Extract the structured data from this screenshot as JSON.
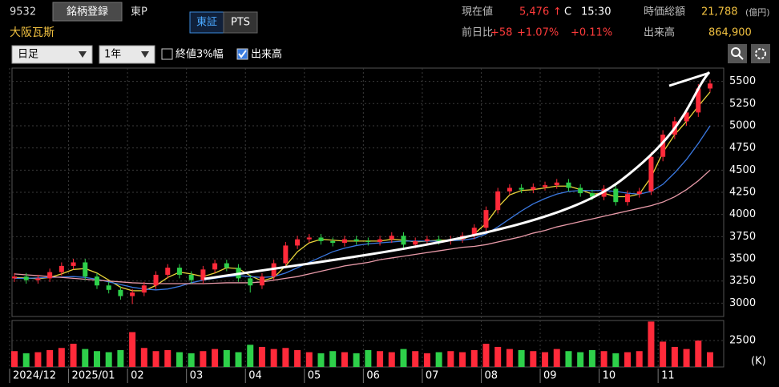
{
  "header": {
    "code": "9532",
    "register": "銘柄登録",
    "market": "東P",
    "tabs": [
      "東証",
      "PTS"
    ],
    "name": "大阪瓦斯",
    "price_label": "現在値",
    "price": "5,476",
    "arrow": "↑",
    "price_flag": "C",
    "time": "15:30",
    "cap_label": "時価総額",
    "cap": "21,788",
    "cap_unit": "(億円)",
    "change_label": "前日比",
    "change": "+58",
    "change_pct": "+1.07%",
    "change_pct2": "+0.11%",
    "volume_label": "出来高",
    "volume": "864,900"
  },
  "controls": {
    "period": "日足",
    "range": "1年",
    "checks": [
      {
        "label": "終値3%幅",
        "checked": false
      },
      {
        "label": "出来高",
        "checked": true
      }
    ]
  },
  "chart_data": {
    "type": "candlestick",
    "up_color": "#ff2a3a",
    "down_color": "#2ed04a",
    "categories": [
      "2024/12",
      null,
      null,
      null,
      null,
      "2025/01",
      null,
      null,
      null,
      null,
      "02",
      null,
      null,
      null,
      null,
      "03",
      null,
      null,
      null,
      null,
      "04",
      null,
      null,
      null,
      null,
      "05",
      null,
      null,
      null,
      null,
      "06",
      null,
      null,
      null,
      null,
      "07",
      null,
      null,
      null,
      null,
      "08",
      null,
      null,
      null,
      null,
      "09",
      null,
      null,
      null,
      null,
      "10",
      null,
      null,
      null,
      null,
      "11",
      null,
      null,
      null,
      null
    ],
    "open": [
      3280,
      3300,
      3260,
      3280,
      3350,
      3420,
      3460,
      3300,
      3200,
      3150,
      3080,
      3120,
      3200,
      3320,
      3400,
      3320,
      3260,
      3380,
      3450,
      3400,
      3280,
      3200,
      3300,
      3450,
      3650,
      3720,
      3740,
      3700,
      3680,
      3720,
      3700,
      3690,
      3720,
      3760,
      3660,
      3700,
      3720,
      3700,
      3720,
      3760,
      3850,
      4050,
      4260,
      4300,
      4280,
      4310,
      4330,
      4360,
      4300,
      4240,
      4200,
      4290,
      4140,
      4230,
      4260,
      4650,
      4900,
      5050,
      5150,
      5420
    ],
    "high": [
      3340,
      3340,
      3320,
      3390,
      3460,
      3500,
      3500,
      3340,
      3240,
      3190,
      3160,
      3240,
      3360,
      3440,
      3440,
      3360,
      3420,
      3490,
      3490,
      3440,
      3320,
      3340,
      3490,
      3690,
      3760,
      3780,
      3780,
      3740,
      3760,
      3760,
      3740,
      3760,
      3800,
      3800,
      3740,
      3760,
      3760,
      3760,
      3800,
      3890,
      4090,
      4300,
      4340,
      4340,
      4350,
      4370,
      4400,
      4400,
      4340,
      4280,
      4330,
      4330,
      4270,
      4300,
      4700,
      4950,
      5100,
      5200,
      5470,
      5520
    ],
    "low": [
      3240,
      3220,
      3220,
      3240,
      3310,
      3380,
      3260,
      3160,
      3110,
      3040,
      2990,
      3080,
      3160,
      3280,
      3280,
      3220,
      3220,
      3340,
      3360,
      3240,
      3120,
      3160,
      3260,
      3410,
      3610,
      3680,
      3660,
      3640,
      3640,
      3660,
      3650,
      3650,
      3680,
      3620,
      3620,
      3660,
      3660,
      3660,
      3680,
      3720,
      3810,
      4010,
      4220,
      4240,
      4240,
      4270,
      4290,
      4260,
      4200,
      4160,
      4160,
      4100,
      4100,
      4190,
      4220,
      4600,
      4850,
      5000,
      5100,
      5380
    ],
    "close": [
      3300,
      3260,
      3280,
      3350,
      3420,
      3460,
      3300,
      3200,
      3150,
      3080,
      3120,
      3200,
      3320,
      3400,
      3320,
      3260,
      3380,
      3450,
      3400,
      3280,
      3200,
      3300,
      3450,
      3650,
      3720,
      3740,
      3700,
      3680,
      3720,
      3700,
      3690,
      3720,
      3760,
      3660,
      3700,
      3720,
      3700,
      3720,
      3760,
      3850,
      4050,
      4260,
      4300,
      4280,
      4310,
      4330,
      4360,
      4300,
      4240,
      4200,
      4290,
      4140,
      4230,
      4260,
      4650,
      4900,
      5050,
      5150,
      5420,
      5476
    ],
    "series": [
      {
        "color": "#e8d43a",
        "values": [
          3290,
          3285,
          3275,
          3290,
          3330,
          3380,
          3390,
          3340,
          3260,
          3180,
          3140,
          3140,
          3200,
          3290,
          3350,
          3330,
          3300,
          3340,
          3400,
          3390,
          3310,
          3250,
          3290,
          3420,
          3580,
          3680,
          3720,
          3710,
          3700,
          3700,
          3700,
          3700,
          3720,
          3710,
          3690,
          3700,
          3710,
          3710,
          3720,
          3780,
          3900,
          4080,
          4220,
          4270,
          4280,
          4300,
          4320,
          4320,
          4280,
          4230,
          4240,
          4200,
          4200,
          4230,
          4420,
          4700,
          4900,
          5050,
          5220,
          5380
        ]
      },
      {
        "color": "#3a78e0",
        "values": [
          3280,
          3280,
          3285,
          3290,
          3295,
          3300,
          3290,
          3270,
          3240,
          3210,
          3180,
          3160,
          3150,
          3160,
          3190,
          3230,
          3260,
          3280,
          3300,
          3310,
          3300,
          3290,
          3300,
          3340,
          3400,
          3460,
          3520,
          3580,
          3620,
          3650,
          3670,
          3680,
          3690,
          3700,
          3700,
          3700,
          3700,
          3705,
          3710,
          3730,
          3780,
          3860,
          3950,
          4040,
          4120,
          4180,
          4230,
          4260,
          4270,
          4270,
          4270,
          4260,
          4240,
          4230,
          4260,
          4340,
          4470,
          4620,
          4800,
          5000
        ]
      },
      {
        "color": "#e89aa8",
        "values": [
          3330,
          3320,
          3310,
          3300,
          3290,
          3280,
          3270,
          3260,
          3250,
          3240,
          3230,
          3225,
          3220,
          3220,
          3220,
          3220,
          3220,
          3225,
          3230,
          3230,
          3230,
          3240,
          3260,
          3280,
          3300,
          3330,
          3360,
          3390,
          3420,
          3440,
          3460,
          3490,
          3510,
          3530,
          3550,
          3570,
          3590,
          3610,
          3630,
          3640,
          3660,
          3690,
          3720,
          3750,
          3790,
          3820,
          3860,
          3890,
          3920,
          3950,
          3980,
          4010,
          4040,
          4070,
          4100,
          4140,
          4200,
          4280,
          4380,
          4500
        ]
      }
    ],
    "ylim": [
      2850,
      5650
    ],
    "yticks": [
      3000,
      3250,
      3500,
      3750,
      4000,
      4250,
      4500,
      4750,
      5000,
      5250,
      5500
    ],
    "grid": true,
    "volume": {
      "unit": "(K)",
      "ylim": [
        0,
        4400
      ],
      "yticks": [
        2500
      ],
      "values": [
        1500,
        1300,
        1400,
        1600,
        1800,
        2200,
        1700,
        1500,
        1400,
        1600,
        3300,
        1800,
        1500,
        1600,
        1400,
        1300,
        1500,
        1700,
        1600,
        1400,
        2100,
        1900,
        1700,
        1800,
        1600,
        1400,
        1300,
        1500,
        1400,
        1300,
        1600,
        1500,
        1400,
        1700,
        1500,
        1300,
        1400,
        1500,
        1400,
        1600,
        2200,
        1900,
        1700,
        1600,
        1500,
        1400,
        1700,
        1500,
        1400,
        1600,
        1500,
        1300,
        1400,
        1500,
        4300,
        2400,
        1900,
        1700,
        2500,
        1400
      ]
    }
  }
}
